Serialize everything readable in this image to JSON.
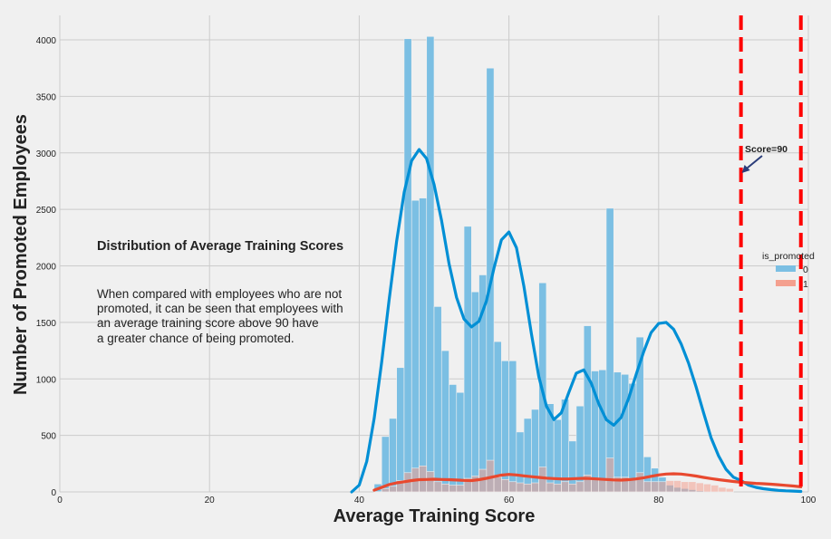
{
  "chart_data": {
    "type": "histogram",
    "xlabel": "Average Training Score",
    "ylabel": "Number of Promoted Employees",
    "xlim": [
      0,
      100
    ],
    "ylim": [
      0,
      4200
    ],
    "xticks": [
      0,
      20,
      40,
      60,
      80,
      100
    ],
    "yticks": [
      0,
      500,
      1000,
      1500,
      2000,
      2500,
      3000,
      3500,
      4000
    ],
    "grid": true,
    "bin_width": 1.0,
    "bin_start": 42.0,
    "legend": {
      "title": "is_promoted",
      "placement": "right",
      "entries": [
        "0",
        "1"
      ]
    },
    "colors": {
      "series0_bar": "#7bbfe3",
      "series0_line": "#008fd5",
      "series1_bar": "#f4a08f",
      "series1_line": "#e8492f",
      "vline": "#ff0000"
    },
    "series": [
      {
        "name": "0",
        "values": [
          70,
          490,
          650,
          1100,
          4010,
          2580,
          2600,
          4030,
          1640,
          1250,
          950,
          880,
          2350,
          1770,
          1920,
          3750,
          1330,
          1160,
          1160,
          530,
          650,
          730,
          1850,
          780,
          640,
          820,
          450,
          760,
          1470,
          1070,
          1080,
          2510,
          1060,
          1040,
          960,
          1370,
          310,
          210,
          130,
          60,
          40,
          30,
          20,
          10,
          5,
          3,
          2,
          1
        ],
        "kde": [
          [
            39,
            0
          ],
          [
            40,
            60
          ],
          [
            41,
            270
          ],
          [
            42,
            650
          ],
          [
            43,
            1150
          ],
          [
            44,
            1700
          ],
          [
            45,
            2220
          ],
          [
            46,
            2650
          ],
          [
            47,
            2930
          ],
          [
            48,
            3030
          ],
          [
            49,
            2950
          ],
          [
            50,
            2720
          ],
          [
            51,
            2400
          ],
          [
            52,
            2020
          ],
          [
            53,
            1720
          ],
          [
            54,
            1530
          ],
          [
            55,
            1460
          ],
          [
            56,
            1510
          ],
          [
            57,
            1690
          ],
          [
            58,
            1980
          ],
          [
            59,
            2230
          ],
          [
            60,
            2300
          ],
          [
            61,
            2160
          ],
          [
            62,
            1820
          ],
          [
            63,
            1400
          ],
          [
            64,
            1020
          ],
          [
            65,
            760
          ],
          [
            66,
            640
          ],
          [
            67,
            700
          ],
          [
            68,
            880
          ],
          [
            69,
            1050
          ],
          [
            70,
            1080
          ],
          [
            71,
            960
          ],
          [
            72,
            780
          ],
          [
            73,
            640
          ],
          [
            74,
            590
          ],
          [
            75,
            660
          ],
          [
            76,
            830
          ],
          [
            77,
            1040
          ],
          [
            78,
            1240
          ],
          [
            79,
            1410
          ],
          [
            80,
            1490
          ],
          [
            81,
            1500
          ],
          [
            82,
            1440
          ],
          [
            83,
            1310
          ],
          [
            84,
            1140
          ],
          [
            85,
            930
          ],
          [
            86,
            700
          ],
          [
            87,
            480
          ],
          [
            88,
            320
          ],
          [
            89,
            200
          ],
          [
            90,
            130
          ],
          [
            91,
            100
          ],
          [
            92,
            60
          ],
          [
            93,
            40
          ],
          [
            94,
            28
          ],
          [
            95,
            20
          ],
          [
            96,
            14
          ],
          [
            97,
            10
          ],
          [
            98,
            7
          ],
          [
            99,
            4
          ]
        ]
      },
      {
        "name": "1",
        "values": [
          2,
          30,
          50,
          100,
          170,
          210,
          230,
          180,
          90,
          70,
          60,
          60,
          120,
          140,
          200,
          280,
          130,
          110,
          90,
          80,
          70,
          80,
          220,
          80,
          70,
          90,
          70,
          90,
          150,
          110,
          110,
          300,
          130,
          130,
          120,
          170,
          90,
          90,
          90,
          100,
          100,
          90,
          90,
          80,
          70,
          60,
          40,
          30
        ],
        "kde": [
          [
            42,
            15
          ],
          [
            43,
            40
          ],
          [
            44,
            65
          ],
          [
            45,
            80
          ],
          [
            46,
            90
          ],
          [
            47,
            100
          ],
          [
            48,
            108
          ],
          [
            49,
            110
          ],
          [
            50,
            112
          ],
          [
            51,
            110
          ],
          [
            52,
            108
          ],
          [
            53,
            105
          ],
          [
            54,
            102
          ],
          [
            55,
            100
          ],
          [
            56,
            108
          ],
          [
            57,
            120
          ],
          [
            58,
            135
          ],
          [
            59,
            148
          ],
          [
            60,
            155
          ],
          [
            61,
            150
          ],
          [
            62,
            142
          ],
          [
            63,
            135
          ],
          [
            64,
            128
          ],
          [
            65,
            122
          ],
          [
            66,
            118
          ],
          [
            67,
            115
          ],
          [
            68,
            115
          ],
          [
            69,
            118
          ],
          [
            70,
            120
          ],
          [
            71,
            118
          ],
          [
            72,
            114
          ],
          [
            73,
            110
          ],
          [
            74,
            106
          ],
          [
            75,
            104
          ],
          [
            76,
            108
          ],
          [
            77,
            115
          ],
          [
            78,
            125
          ],
          [
            79,
            138
          ],
          [
            80,
            150
          ],
          [
            81,
            158
          ],
          [
            82,
            160
          ],
          [
            83,
            158
          ],
          [
            84,
            150
          ],
          [
            85,
            140
          ],
          [
            86,
            128
          ],
          [
            87,
            118
          ],
          [
            88,
            108
          ],
          [
            89,
            100
          ],
          [
            90,
            92
          ],
          [
            91,
            85
          ],
          [
            92,
            80
          ],
          [
            93,
            75
          ],
          [
            94,
            72
          ],
          [
            95,
            68
          ],
          [
            96,
            63
          ],
          [
            97,
            58
          ],
          [
            98,
            52
          ],
          [
            99,
            45
          ]
        ]
      }
    ],
    "vlines": [
      91,
      99
    ],
    "annotations": {
      "title": "Distribution of Average Training Scores",
      "body_lines": [
        "When compared with employees who are not",
        "promoted, it can be seen that employees with",
        "an average training score above 90 have",
        "a greater chance of being promoted."
      ],
      "arrow_label": "Score=90"
    }
  }
}
